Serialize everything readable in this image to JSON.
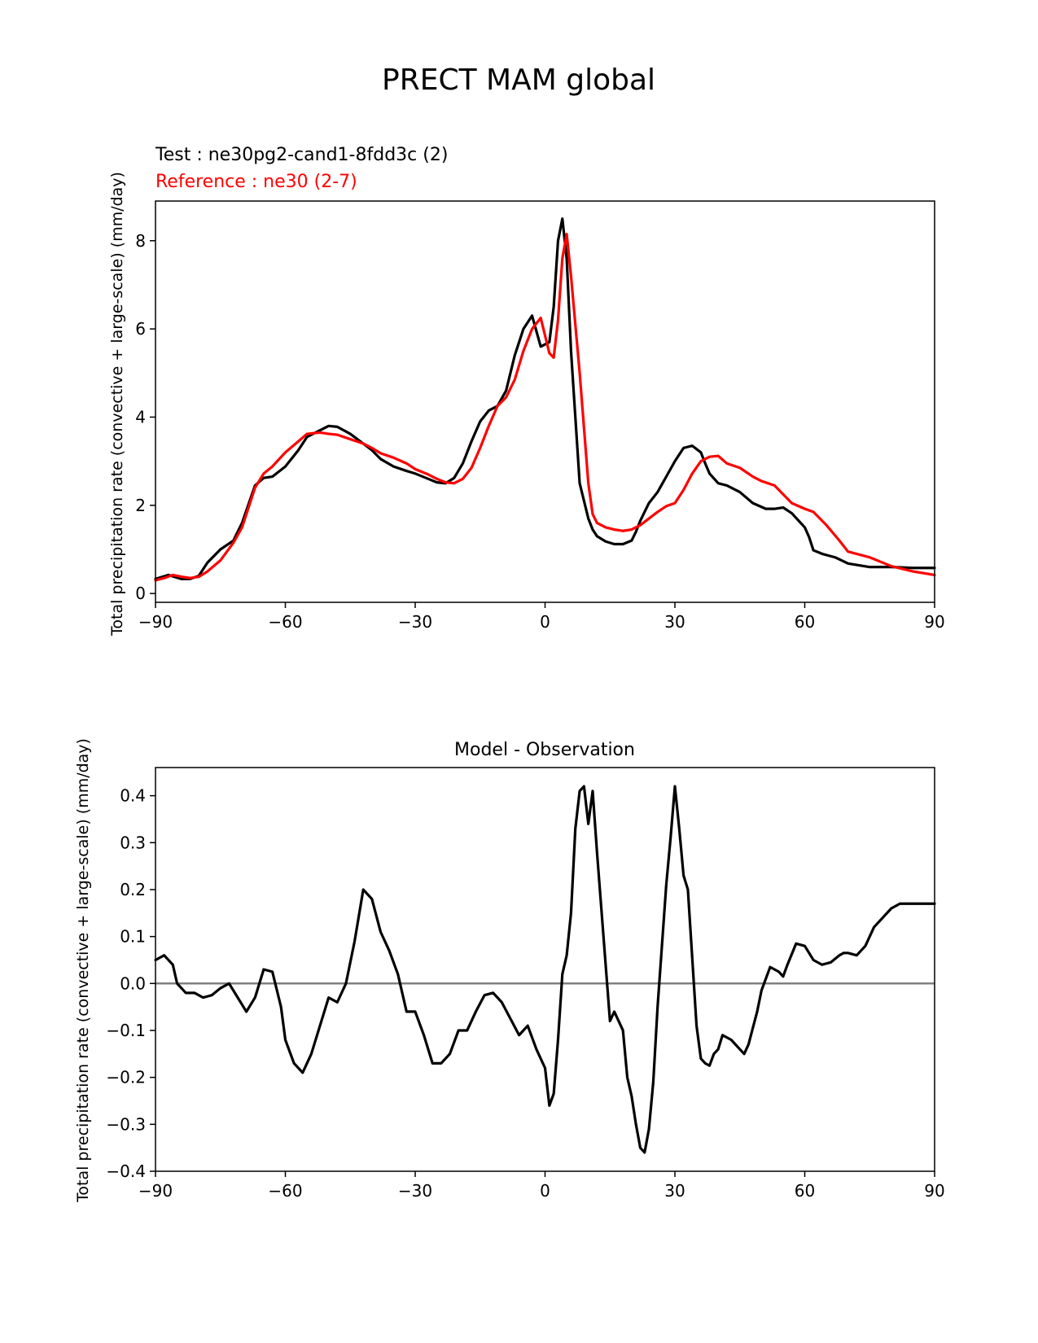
{
  "figure_title": "PRECT MAM global",
  "chart_data": [
    {
      "type": "line",
      "title": "",
      "legend": {
        "test_label": "Test : ne30pg2-cand1-8fdd3c (2)",
        "reference_label": "Reference : ne30 (2-7)"
      },
      "xlabel": "",
      "ylabel": "Total precipitation rate (convective + large-scale) (mm/day)",
      "xlim": [
        -90,
        90
      ],
      "ylim": [
        -0.2,
        8.9
      ],
      "xticks": [
        -90,
        -60,
        -30,
        0,
        30,
        60,
        90
      ],
      "xtick_labels": [
        "−90",
        "−60",
        "−30",
        "0",
        "30",
        "60",
        "90"
      ],
      "yticks": [
        0,
        2,
        4,
        6,
        8
      ],
      "ytick_labels": [
        "0",
        "2",
        "4",
        "6",
        "8"
      ],
      "series": [
        {
          "name": "Test",
          "color": "#000000",
          "x": [
            -90,
            -87,
            -84,
            -82,
            -80,
            -78,
            -75,
            -72,
            -70,
            -67,
            -65,
            -63,
            -60,
            -57,
            -55,
            -52,
            -50,
            -48,
            -45,
            -42,
            -40,
            -38,
            -35,
            -32,
            -30,
            -27,
            -25,
            -23,
            -21,
            -19,
            -17,
            -15,
            -13,
            -11,
            -9,
            -7,
            -5,
            -3,
            -1,
            1,
            2,
            3,
            4,
            5,
            6,
            8,
            10,
            11,
            12,
            14,
            16,
            18,
            20,
            21,
            22,
            24,
            26,
            28,
            30,
            32,
            34,
            36,
            37,
            38,
            40,
            42,
            45,
            48,
            51,
            53,
            55,
            57,
            60,
            61,
            62,
            64,
            67,
            70,
            75,
            80,
            85,
            90
          ],
          "values": [
            0.33,
            0.42,
            0.33,
            0.33,
            0.4,
            0.7,
            1.0,
            1.2,
            1.6,
            2.45,
            2.62,
            2.65,
            2.88,
            3.25,
            3.55,
            3.7,
            3.8,
            3.78,
            3.62,
            3.4,
            3.25,
            3.05,
            2.88,
            2.78,
            2.72,
            2.6,
            2.52,
            2.5,
            2.62,
            2.95,
            3.45,
            3.9,
            4.15,
            4.25,
            4.6,
            5.4,
            6.0,
            6.3,
            5.6,
            5.7,
            6.5,
            8.0,
            8.5,
            7.6,
            5.5,
            2.5,
            1.7,
            1.45,
            1.3,
            1.18,
            1.12,
            1.12,
            1.2,
            1.4,
            1.65,
            2.05,
            2.3,
            2.65,
            3.0,
            3.3,
            3.35,
            3.2,
            2.95,
            2.72,
            2.5,
            2.45,
            2.3,
            2.05,
            1.92,
            1.92,
            1.95,
            1.82,
            1.5,
            1.28,
            0.98,
            0.9,
            0.82,
            0.68,
            0.6,
            0.6,
            0.58,
            0.58
          ]
        },
        {
          "name": "Reference",
          "color": "#ff0000",
          "x": [
            -90,
            -88,
            -86,
            -84,
            -82,
            -80,
            -78,
            -75,
            -72,
            -70,
            -67,
            -65,
            -63,
            -60,
            -57,
            -55,
            -52,
            -50,
            -48,
            -45,
            -42,
            -40,
            -38,
            -35,
            -32,
            -30,
            -27,
            -25,
            -23,
            -21,
            -19,
            -17,
            -15,
            -13,
            -11,
            -9,
            -7,
            -5,
            -3,
            -1,
            1,
            2,
            3,
            4,
            5,
            6,
            8,
            10,
            11,
            12,
            14,
            16,
            18,
            20,
            22,
            24,
            26,
            28,
            30,
            32,
            34,
            36,
            38,
            40,
            42,
            45,
            48,
            50,
            53,
            55,
            57,
            60,
            62,
            65,
            68,
            70,
            75,
            80,
            85,
            90
          ],
          "values": [
            0.3,
            0.35,
            0.42,
            0.38,
            0.35,
            0.38,
            0.5,
            0.75,
            1.15,
            1.5,
            2.4,
            2.72,
            2.88,
            3.2,
            3.45,
            3.62,
            3.65,
            3.62,
            3.6,
            3.5,
            3.4,
            3.3,
            3.18,
            3.08,
            2.95,
            2.82,
            2.7,
            2.6,
            2.52,
            2.5,
            2.6,
            2.85,
            3.3,
            3.8,
            4.25,
            4.45,
            4.85,
            5.5,
            6.0,
            6.25,
            5.45,
            5.35,
            6.2,
            7.6,
            8.15,
            7.2,
            5.0,
            2.5,
            1.8,
            1.6,
            1.5,
            1.45,
            1.42,
            1.45,
            1.55,
            1.7,
            1.85,
            1.98,
            2.05,
            2.35,
            2.72,
            3.0,
            3.1,
            3.12,
            2.95,
            2.85,
            2.65,
            2.55,
            2.45,
            2.25,
            2.05,
            1.92,
            1.85,
            1.55,
            1.2,
            0.95,
            0.82,
            0.62,
            0.5,
            0.42
          ]
        }
      ]
    },
    {
      "type": "line",
      "title": "Model - Observation",
      "xlabel": "",
      "ylabel": "Total precipitation rate (convective + large-scale) (mm/day)",
      "xlim": [
        -90,
        90
      ],
      "ylim": [
        -0.4,
        0.46
      ],
      "xticks": [
        -90,
        -60,
        -30,
        0,
        30,
        60,
        90
      ],
      "xtick_labels": [
        "−90",
        "−60",
        "−30",
        "0",
        "30",
        "60",
        "90"
      ],
      "yticks": [
        0.4,
        0.3,
        0.2,
        0.1,
        0.0,
        -0.1,
        -0.2,
        -0.3,
        -0.4
      ],
      "ytick_labels": [
        "0.4",
        "0.3",
        "0.2",
        "0.1",
        "0.0",
        "−0.1",
        "−0.2",
        "−0.3",
        "−0.4"
      ],
      "reference_line": 0.0,
      "series": [
        {
          "name": "Model - Observation",
          "color": "#000000",
          "x": [
            -90,
            -88,
            -86,
            -85,
            -83,
            -81,
            -79,
            -77,
            -75,
            -73,
            -71,
            -69,
            -67,
            -65,
            -63,
            -61,
            -60,
            -58,
            -56,
            -54,
            -52,
            -50,
            -48,
            -46,
            -44,
            -42,
            -40,
            -38,
            -36,
            -34,
            -32,
            -30,
            -28,
            -26,
            -24,
            -22,
            -20,
            -18,
            -16,
            -14,
            -12,
            -10,
            -8,
            -6,
            -4,
            -2,
            0,
            1,
            2,
            3,
            4,
            5,
            6,
            7,
            8,
            9,
            10,
            11,
            12,
            14,
            15,
            16,
            18,
            19,
            20,
            21,
            22,
            23,
            24,
            25,
            26,
            28,
            29,
            30,
            31,
            32,
            33,
            35,
            36,
            37,
            38,
            39,
            40,
            41,
            43,
            45,
            46,
            47,
            49,
            50,
            51,
            52,
            54,
            55,
            56,
            58,
            60,
            62,
            64,
            66,
            68,
            69,
            70,
            72,
            74,
            76,
            78,
            80,
            81,
            82,
            84,
            86,
            88,
            90
          ],
          "values": [
            0.05,
            0.06,
            0.04,
            0.0,
            -0.02,
            -0.02,
            -0.03,
            -0.025,
            -0.01,
            0.0,
            -0.03,
            -0.06,
            -0.03,
            0.03,
            0.025,
            -0.05,
            -0.12,
            -0.17,
            -0.19,
            -0.15,
            -0.09,
            -0.03,
            -0.04,
            0.0,
            0.09,
            0.2,
            0.18,
            0.11,
            0.07,
            0.02,
            -0.06,
            -0.06,
            -0.11,
            -0.17,
            -0.17,
            -0.15,
            -0.1,
            -0.1,
            -0.06,
            -0.025,
            -0.02,
            -0.04,
            -0.075,
            -0.11,
            -0.09,
            -0.14,
            -0.18,
            -0.26,
            -0.235,
            -0.12,
            0.02,
            0.06,
            0.15,
            0.33,
            0.41,
            0.42,
            0.34,
            0.41,
            0.28,
            0.04,
            -0.08,
            -0.06,
            -0.1,
            -0.2,
            -0.24,
            -0.3,
            -0.35,
            -0.36,
            -0.31,
            -0.21,
            -0.05,
            0.21,
            0.31,
            0.42,
            0.33,
            0.23,
            0.2,
            -0.09,
            -0.16,
            -0.17,
            -0.175,
            -0.15,
            -0.14,
            -0.11,
            -0.12,
            -0.14,
            -0.15,
            -0.13,
            -0.06,
            -0.015,
            0.01,
            0.035,
            0.025,
            0.015,
            0.04,
            0.085,
            0.08,
            0.05,
            0.04,
            0.045,
            0.06,
            0.065,
            0.065,
            0.06,
            0.08,
            0.12,
            0.14,
            0.16,
            0.165,
            0.17,
            0.17,
            0.17,
            0.17,
            0.17
          ]
        }
      ]
    }
  ]
}
